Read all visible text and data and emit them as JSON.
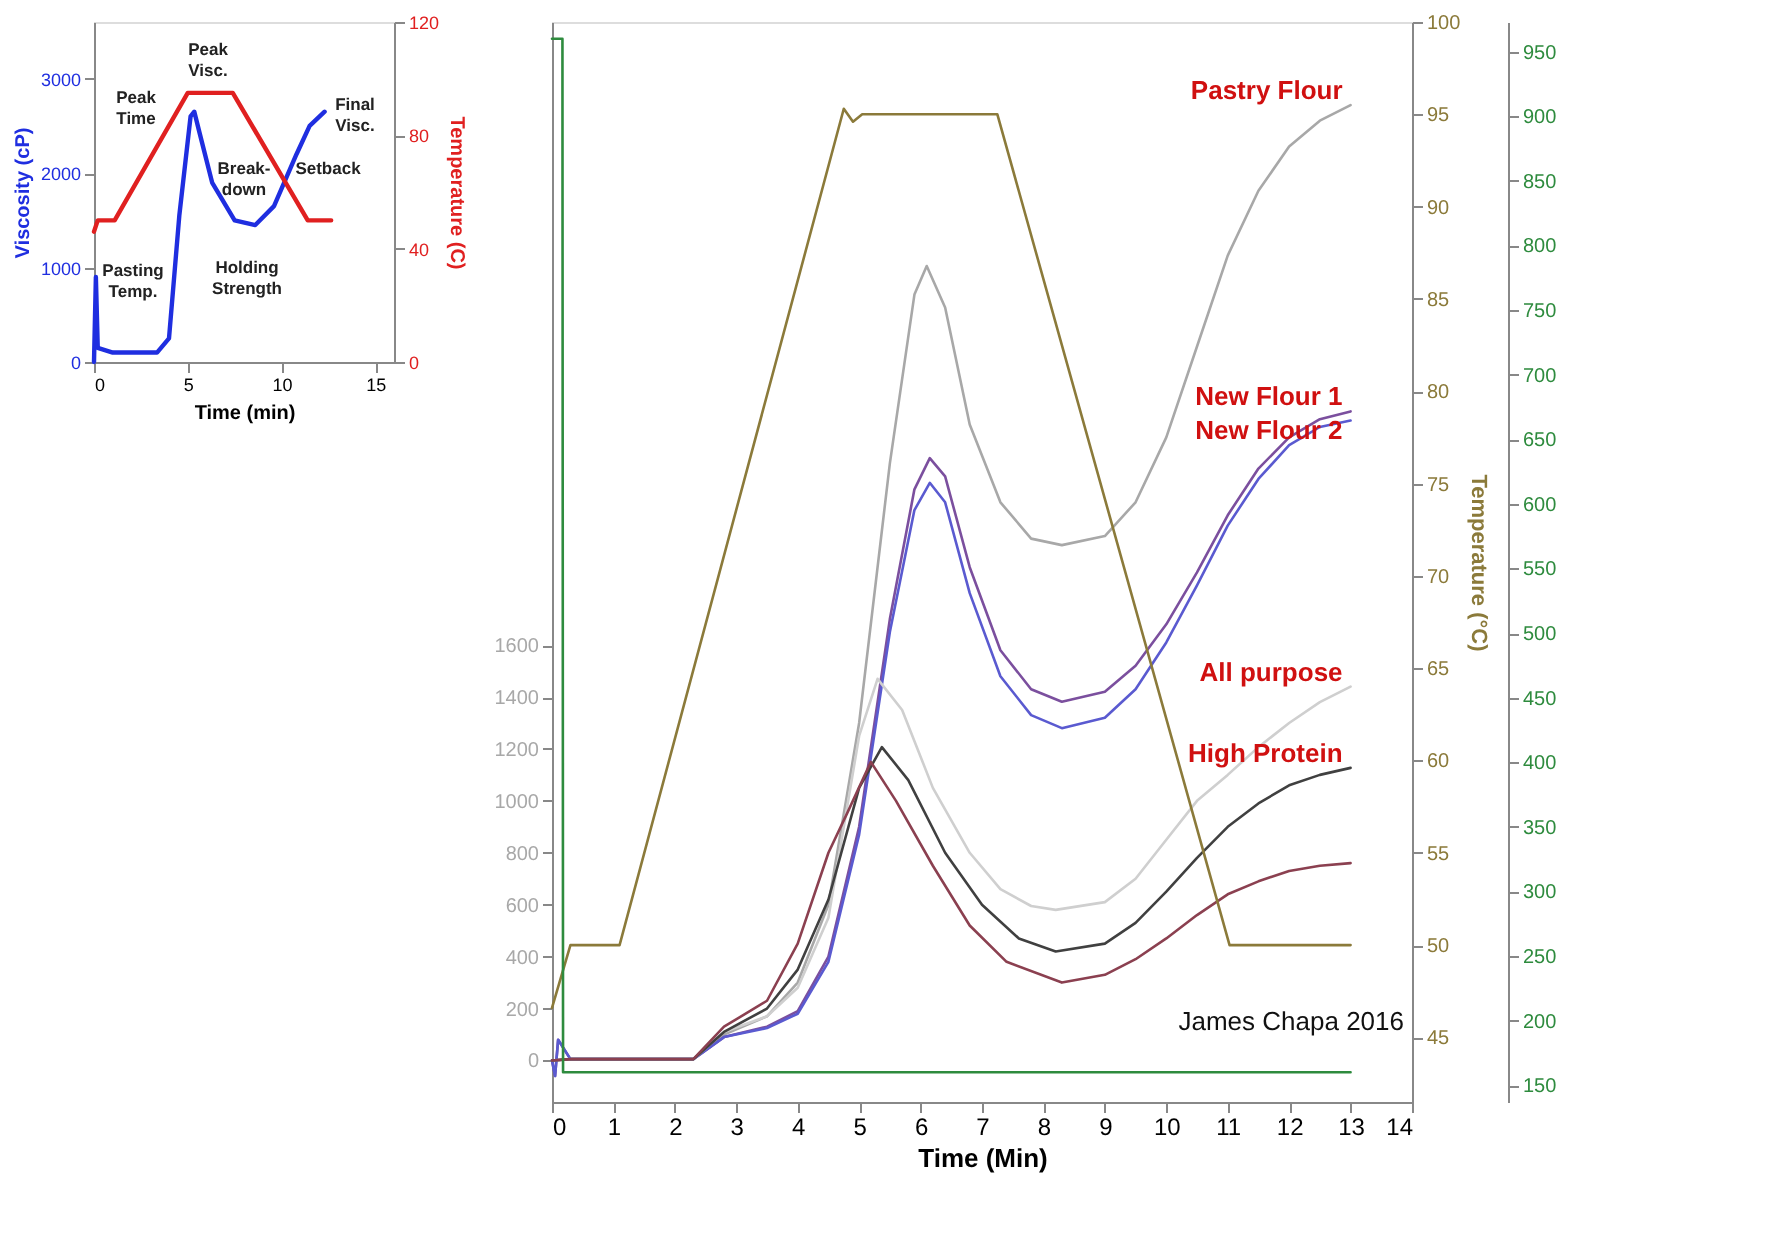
{
  "chart_data": [
    {
      "type": "line",
      "xlabel": "Time (min)",
      "ylabel": "Viscosity (cP)",
      "y2label": "Temperature (C)",
      "xlim": [
        0,
        16
      ],
      "xticks": [
        0,
        5,
        10,
        15
      ],
      "ylim": [
        0,
        3600
      ],
      "yticks": [
        0,
        1000,
        2000,
        3000
      ],
      "y2lim": [
        0,
        120
      ],
      "y2ticks": [
        0,
        40,
        80,
        120
      ],
      "series": [
        {
          "color": "#1f2ee0",
          "x": [
            0,
            0.1,
            0.2,
            1,
            2,
            3.36,
            4,
            4.55,
            5.15,
            5.35,
            5.6,
            6.3,
            7.5,
            8.6,
            9.6,
            10.8,
            11.5,
            12.3
          ],
          "values": [
            0,
            900,
            150,
            100,
            100,
            100,
            250,
            1550,
            2600,
            2650,
            2450,
            1900,
            1500,
            1450,
            1650,
            2200,
            2500,
            2650
          ]
        },
        {
          "color": "#e02020",
          "axis": "y2",
          "x": [
            0,
            0.2,
            1.1,
            5.0,
            7.4,
            11.4,
            12.65
          ],
          "values": [
            46,
            50,
            50,
            95,
            95,
            50,
            50
          ]
        }
      ],
      "annotations": [
        "Peak\nTime",
        "Peak\nVisc.",
        "Pasting\nTemp.",
        "Break-\ndown",
        "Holding\nStrength",
        "Final\nVisc.",
        "Setback"
      ]
    },
    {
      "type": "line",
      "xlabel": "Time (Min)",
      "y2label": "Temperature (°C)",
      "xlim": [
        0,
        14
      ],
      "xticks": [
        0,
        1,
        2,
        3,
        4,
        5,
        6,
        7,
        8,
        9,
        10,
        11,
        12,
        13,
        14
      ],
      "ylim": [
        -160,
        4000
      ],
      "yticks": [
        0,
        200,
        400,
        600,
        800,
        1000,
        1200,
        1400,
        1600
      ],
      "y2lim": [
        41.5,
        100
      ],
      "y2ticks": [
        45,
        50,
        55,
        60,
        65,
        70,
        75,
        80,
        85,
        90,
        95,
        100
      ],
      "y3lim": [
        137,
        973
      ],
      "y3ticks": [
        150,
        200,
        250,
        300,
        350,
        400,
        450,
        500,
        550,
        600,
        650,
        700,
        750,
        800,
        850,
        900,
        950
      ],
      "series": [
        {
          "name": "Pastry Flour",
          "color": "#a8a8a8",
          "x": [
            0,
            0.3,
            2.3,
            2.8,
            3.5,
            4,
            4.5,
            5,
            5.5,
            5.9,
            6.1,
            6.4,
            6.8,
            7.3,
            7.8,
            8.3,
            9,
            9.5,
            10,
            10.5,
            11,
            11.5,
            12,
            12.5,
            13
          ],
          "values": [
            0,
            5,
            5,
            100,
            170,
            300,
            600,
            1300,
            2300,
            2950,
            3060,
            2900,
            2450,
            2150,
            2010,
            1985,
            2020,
            2150,
            2400,
            2750,
            3100,
            3350,
            3520,
            3620,
            3680
          ]
        },
        {
          "name": "New Flour 1",
          "color": "#7b4f9e",
          "x": [
            0,
            0.05,
            0.1,
            0.3,
            2.3,
            2.8,
            3.5,
            4,
            4.5,
            5,
            5.5,
            5.9,
            6.15,
            6.4,
            6.8,
            7.3,
            7.8,
            8.3,
            9,
            9.5,
            10,
            10.5,
            11,
            11.5,
            12,
            12.5,
            13
          ],
          "values": [
            0,
            -60,
            80,
            5,
            5,
            90,
            130,
            190,
            400,
            900,
            1700,
            2200,
            2320,
            2250,
            1900,
            1580,
            1430,
            1382,
            1420,
            1520,
            1680,
            1880,
            2100,
            2280,
            2400,
            2470,
            2500
          ]
        },
        {
          "name": "New Flour 2",
          "color": "#5a5ad0",
          "x": [
            0,
            0.05,
            0.1,
            0.3,
            2.3,
            2.8,
            3.5,
            4,
            4.5,
            5,
            5.5,
            5.9,
            6.15,
            6.4,
            6.8,
            7.3,
            7.8,
            8.3,
            9,
            9.5,
            10,
            10.5,
            11,
            11.5,
            12,
            12.5,
            13
          ],
          "values": [
            0,
            -60,
            80,
            5,
            5,
            90,
            125,
            180,
            380,
            870,
            1650,
            2120,
            2225,
            2150,
            1800,
            1480,
            1330,
            1280,
            1320,
            1430,
            1610,
            1830,
            2060,
            2240,
            2370,
            2440,
            2465
          ]
        },
        {
          "name": "All purpose",
          "color": "#cfcfcf",
          "x": [
            0,
            0.3,
            2.3,
            2.8,
            3.5,
            4,
            4.5,
            5,
            5.3,
            5.7,
            6.2,
            6.8,
            7.3,
            7.8,
            8.2,
            9,
            9.5,
            10,
            10.5,
            11,
            11.5,
            12,
            12.5,
            13
          ],
          "values": [
            0,
            5,
            5,
            110,
            170,
            280,
            550,
            1250,
            1470,
            1350,
            1050,
            800,
            660,
            595,
            580,
            610,
            700,
            850,
            1000,
            1100,
            1207,
            1300,
            1380,
            1440
          ]
        },
        {
          "name": "High Protein",
          "color": "#404040",
          "x": [
            0,
            0.3,
            2.3,
            2.8,
            3.5,
            4,
            4.5,
            5,
            5.37,
            5.8,
            6.4,
            7,
            7.6,
            8.2,
            9,
            9.5,
            10,
            10.5,
            11,
            11.5,
            12,
            12.5,
            13
          ],
          "values": [
            0,
            5,
            5,
            110,
            200,
            350,
            620,
            1050,
            1207,
            1080,
            800,
            600,
            470,
            420,
            450,
            530,
            650,
            780,
            900,
            990,
            1060,
            1100,
            1127
          ]
        },
        {
          "color": "#8b4050",
          "x": [
            0,
            0.3,
            2.3,
            2.8,
            3.5,
            4,
            4.5,
            4.8,
            5.19,
            5.6,
            6.2,
            6.8,
            7.4,
            8.3,
            9,
            9.5,
            10,
            10.5,
            11,
            11.5,
            12,
            12.5,
            13
          ],
          "values": [
            0,
            5,
            5,
            130,
            230,
            450,
            800,
            950,
            1150,
            1000,
            750,
            520,
            380,
            300,
            330,
            390,
            470,
            560,
            640,
            690,
            730,
            750,
            760
          ]
        },
        {
          "color": "#8b7a3a",
          "axis": "y2",
          "x": [
            0,
            0.3,
            1.1,
            4.75,
            4.9,
            5.05,
            7.25,
            11.03,
            13
          ],
          "values": [
            46.6,
            50,
            50,
            95.3,
            94.6,
            95,
            95,
            50,
            50
          ]
        },
        {
          "color": "#2e8b3e",
          "axis": "y3",
          "x": [
            0,
            0.17,
            0.18,
            13
          ],
          "values": [
            960,
            960,
            160,
            160
          ]
        }
      ],
      "annotations": [
        "James Chapa 2016"
      ]
    }
  ]
}
